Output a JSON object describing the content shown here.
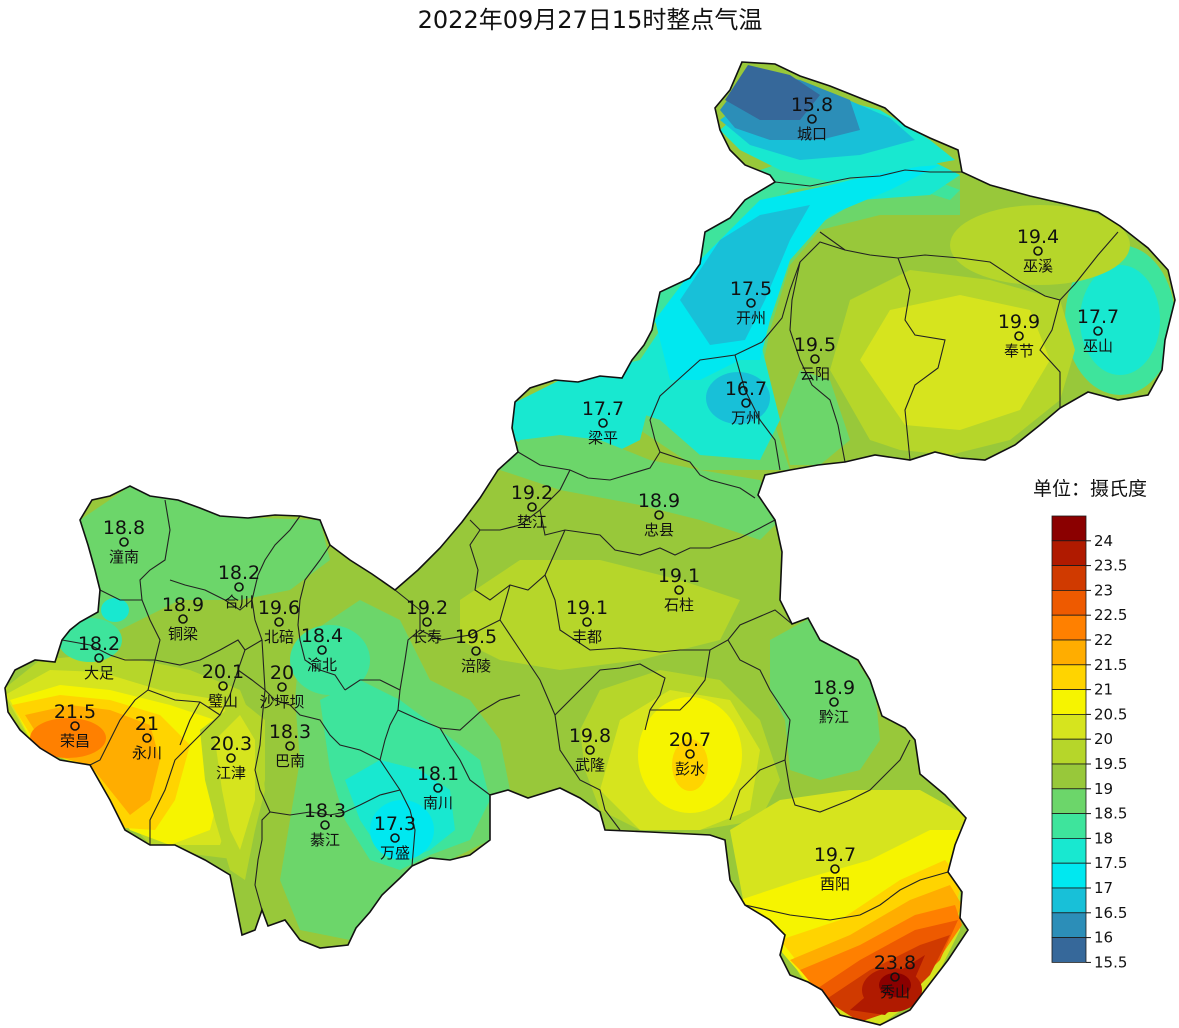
{
  "title": "2022年09月27日15时整点气温",
  "legend": {
    "title": "单位：摄氏度",
    "levels": [
      {
        "label": "24",
        "color": "#8b0000"
      },
      {
        "label": "23.5",
        "color": "#b01a00"
      },
      {
        "label": "23",
        "color": "#d03a00"
      },
      {
        "label": "22.5",
        "color": "#ee5a00"
      },
      {
        "label": "22",
        "color": "#ff8000"
      },
      {
        "label": "21.5",
        "color": "#ffad00"
      },
      {
        "label": "21",
        "color": "#ffd400"
      },
      {
        "label": "20.5",
        "color": "#f6f400"
      },
      {
        "label": "20",
        "color": "#d6e41e"
      },
      {
        "label": "19.5",
        "color": "#b6d62a"
      },
      {
        "label": "19",
        "color": "#98c83a"
      },
      {
        "label": "18.5",
        "color": "#6cd66a"
      },
      {
        "label": "18",
        "color": "#3ee49c"
      },
      {
        "label": "17.5",
        "color": "#18e8d0"
      },
      {
        "label": "17",
        "color": "#00e8f0"
      },
      {
        "label": "16.5",
        "color": "#18c0d8"
      },
      {
        "label": "16",
        "color": "#2c8eb8"
      },
      {
        "label": "15.5",
        "color": "#36689a"
      }
    ]
  },
  "stations": [
    {
      "name": "城口",
      "value": "15.8",
      "color": "#2c8eb8"
    },
    {
      "name": "巫溪",
      "value": "19.4",
      "color": "#98c83a"
    },
    {
      "name": "开州",
      "value": "17.5",
      "color": "#18e8d0"
    },
    {
      "name": "奉节",
      "value": "19.9",
      "color": "#b6d62a"
    },
    {
      "name": "巫山",
      "value": "17.7",
      "color": "#18e8d0"
    },
    {
      "name": "云阳",
      "value": "19.5",
      "color": "#98c83a"
    },
    {
      "name": "万州",
      "value": "16.7",
      "color": "#18c0d8"
    },
    {
      "name": "梁平",
      "value": "17.7",
      "color": "#18e8d0"
    },
    {
      "name": "垫江",
      "value": "19.2",
      "color": "#98c83a"
    },
    {
      "name": "忠县",
      "value": "18.9",
      "color": "#6cd66a"
    },
    {
      "name": "潼南",
      "value": "18.8",
      "color": "#6cd66a"
    },
    {
      "name": "合川",
      "value": "18.2",
      "color": "#3ee49c"
    },
    {
      "name": "石柱",
      "value": "19.1",
      "color": "#98c83a"
    },
    {
      "name": "铜梁",
      "value": "18.9",
      "color": "#6cd66a"
    },
    {
      "name": "北碚",
      "value": "19.6",
      "color": "#98c83a"
    },
    {
      "name": "长寿",
      "value": "19.2",
      "color": "#98c83a"
    },
    {
      "name": "丰都",
      "value": "19.1",
      "color": "#98c83a"
    },
    {
      "name": "渝北",
      "value": "18.4",
      "color": "#3ee49c"
    },
    {
      "name": "大足",
      "value": "18.2",
      "color": "#3ee49c"
    },
    {
      "name": "涪陵",
      "value": "19.5",
      "color": "#98c83a"
    },
    {
      "name": "璧山",
      "value": "20.1",
      "color": "#d6e41e"
    },
    {
      "name": "沙坪坝",
      "value": "20",
      "color": "#d6e41e"
    },
    {
      "name": "黔江",
      "value": "18.9",
      "color": "#6cd66a"
    },
    {
      "name": "荣昌",
      "value": "21.5",
      "color": "#ffad00"
    },
    {
      "name": "永川",
      "value": "21",
      "color": "#ffd400"
    },
    {
      "name": "巴南",
      "value": "18.3",
      "color": "#3ee49c"
    },
    {
      "name": "武隆",
      "value": "19.8",
      "color": "#b6d62a"
    },
    {
      "name": "彭水",
      "value": "20.7",
      "color": "#f6f400"
    },
    {
      "name": "江津",
      "value": "20.3",
      "color": "#d6e41e"
    },
    {
      "name": "南川",
      "value": "18.1",
      "color": "#3ee49c"
    },
    {
      "name": "綦江",
      "value": "18.3",
      "color": "#3ee49c"
    },
    {
      "name": "万盛",
      "value": "17.3",
      "color": "#00e8f0"
    },
    {
      "name": "酉阳",
      "value": "19.7",
      "color": "#b6d62a"
    },
    {
      "name": "秀山",
      "value": "23.8",
      "color": "#b01a00"
    }
  ]
}
